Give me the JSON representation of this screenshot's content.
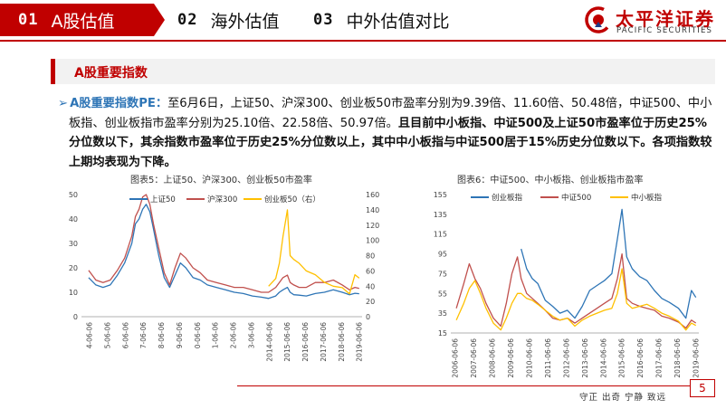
{
  "header": {
    "tabs": [
      {
        "num": "01",
        "label": "A股估值"
      },
      {
        "num": "02",
        "label": "海外估值"
      },
      {
        "num": "03",
        "label": "中外估值对比"
      }
    ],
    "logo_cn": "太平洋证券",
    "logo_en": "PACIFIC SECURITIES"
  },
  "section": {
    "title": "A股重要指数"
  },
  "paragraph": {
    "lead": "A股重要指数PE：",
    "normal": "至6月6日，上证50、沪深300、创业板50市盈率分别为9.39倍、11.60倍、50.48倍，中证500、中小板指、创业板指市盈率分别为25.10倍、22.58倍、50.97倍。",
    "bold": "且目前中小板指、中证500及上证50市盈率位于历史25%分位数以下，其余指数市盈率位于历史25%分位数以上，其中中小板指与中证500居于15%历史分位数以下。各项指数较上期均表现为下降。"
  },
  "colors": {
    "brand": "#c00000",
    "blue": "#2e75b6",
    "red": "#c0504d",
    "gold": "#ffc000"
  },
  "chart_data": [
    {
      "type": "line",
      "title": "图表5：上证50、沪深300、创业板50市盈率",
      "legend": [
        "上证50",
        "沪深300",
        "创业板50（右）"
      ],
      "ylim": [
        0,
        50
      ],
      "y_ticks": [
        "0",
        "10",
        "20",
        "30",
        "40",
        "50"
      ],
      "y2lim": [
        0,
        160
      ],
      "y2_ticks": [
        "0",
        "20",
        "40",
        "60",
        "80",
        "100",
        "120",
        "140",
        "160"
      ],
      "x_ticks": [
        "2004-06-06",
        "2005-06-06",
        "2006-06-06",
        "2007-06-06",
        "2008-06-06",
        "2009-06-06",
        "2010-06-06",
        "2011-06-06",
        "2012-06-06",
        "2013-06-06",
        "2014-06-06",
        "2015-06-06",
        "2016-06-06",
        "2017-06-06",
        "2018-06-06",
        "2019-06-06"
      ],
      "x_tick_labels": [
        "4-06-06",
        "5-06-06",
        "6-06-06",
        "7-06-06",
        "8-06-06",
        "9-06-06",
        "0-06-06",
        "1-06-06",
        "2-06-06",
        "3-06-06",
        "2014-06-06",
        "2015-06-06",
        "2016-06-06",
        "2017-06-06",
        "2018-06-06",
        "2019-06-06"
      ],
      "x": [
        2004.4,
        2004.8,
        2005.2,
        2005.6,
        2006.0,
        2006.4,
        2006.8,
        2007.0,
        2007.2,
        2007.4,
        2007.6,
        2007.8,
        2008.0,
        2008.3,
        2008.6,
        2008.9,
        2009.2,
        2009.5,
        2009.8,
        2010.2,
        2010.6,
        2011.0,
        2011.5,
        2012.0,
        2012.5,
        2013.0,
        2013.5,
        2014.0,
        2014.4,
        2014.8,
        2015.0,
        2015.2,
        2015.45,
        2015.6,
        2015.8,
        2016.1,
        2016.5,
        2017.0,
        2017.5,
        2018.0,
        2018.5,
        2018.9,
        2019.2,
        2019.44
      ],
      "series": [
        {
          "name": "上证50",
          "axis": "left",
          "values": [
            16,
            13,
            12,
            13,
            17,
            22,
            30,
            38,
            40,
            44,
            46,
            43,
            36,
            25,
            16,
            12,
            17,
            22,
            20,
            16,
            15,
            13,
            12,
            11,
            10,
            9.5,
            8.5,
            8.0,
            7.5,
            8.5,
            10,
            11,
            12,
            10,
            9,
            8.8,
            8.5,
            9.5,
            10,
            11,
            10,
            9,
            9.6,
            9.4
          ]
        },
        {
          "name": "沪深300",
          "axis": "left",
          "values": [
            19,
            15,
            14,
            15,
            19,
            24,
            33,
            41,
            44,
            49,
            50,
            46,
            38,
            28,
            18,
            13,
            20,
            26,
            24,
            20,
            18,
            15,
            14,
            13,
            12,
            12,
            11,
            10,
            10,
            12,
            14,
            16,
            17,
            14,
            13,
            12,
            12,
            14,
            14,
            15,
            13,
            11,
            12,
            11.6
          ]
        },
        {
          "name": "创业板50（右）",
          "axis": "right",
          "values": [
            null,
            null,
            null,
            null,
            null,
            null,
            null,
            null,
            null,
            null,
            null,
            null,
            null,
            null,
            null,
            null,
            null,
            null,
            null,
            null,
            null,
            null,
            null,
            null,
            null,
            null,
            null,
            null,
            40,
            50,
            70,
            105,
            140,
            80,
            75,
            70,
            60,
            55,
            45,
            40,
            38,
            30,
            55,
            50.5
          ]
        }
      ]
    },
    {
      "type": "line",
      "title": "图表6：中证500、中小板指、创业板指市盈率",
      "legend": [
        "创业板指",
        "中证500",
        "中小板指"
      ],
      "ylim": [
        15,
        155
      ],
      "y_ticks": [
        "15",
        "35",
        "55",
        "75",
        "95",
        "115",
        "135",
        "155"
      ],
      "x_ticks": [
        "2006-06-06",
        "2007-06-06",
        "2008-06-06",
        "2009-06-06",
        "2010-06-06",
        "2011-06-06",
        "2012-06-06",
        "2013-06-06",
        "2014-06-06",
        "2015-06-06",
        "2016-06-06",
        "2017-06-06",
        "2018-06-06",
        "2019-06-06"
      ],
      "x": [
        2006.5,
        2006.9,
        2007.2,
        2007.5,
        2007.8,
        2008.1,
        2008.5,
        2008.9,
        2009.2,
        2009.5,
        2009.8,
        2010.0,
        2010.3,
        2010.6,
        2010.9,
        2011.3,
        2011.7,
        2012.1,
        2012.5,
        2012.9,
        2013.3,
        2013.7,
        2014.1,
        2014.5,
        2014.9,
        2015.2,
        2015.45,
        2015.7,
        2016.0,
        2016.4,
        2016.8,
        2017.2,
        2017.6,
        2018.0,
        2018.5,
        2018.9,
        2019.2,
        2019.44
      ],
      "series": [
        {
          "name": "创业板指",
          "values": [
            null,
            null,
            null,
            null,
            null,
            null,
            null,
            null,
            null,
            null,
            null,
            100,
            80,
            70,
            65,
            48,
            42,
            35,
            38,
            30,
            42,
            58,
            63,
            68,
            75,
            110,
            140,
            92,
            80,
            72,
            68,
            58,
            50,
            46,
            40,
            30,
            58,
            50.97
          ]
        },
        {
          "name": "中证500",
          "values": [
            40,
            65,
            85,
            70,
            60,
            45,
            30,
            22,
            45,
            75,
            92,
            70,
            55,
            50,
            45,
            38,
            30,
            28,
            30,
            25,
            30,
            35,
            40,
            45,
            50,
            70,
            95,
            50,
            45,
            42,
            40,
            38,
            32,
            30,
            26,
            20,
            28,
            25.1
          ]
        },
        {
          "name": "中小板指",
          "values": [
            28,
            45,
            60,
            68,
            55,
            40,
            25,
            18,
            30,
            45,
            55,
            55,
            50,
            48,
            44,
            38,
            32,
            28,
            30,
            22,
            28,
            32,
            35,
            38,
            40,
            55,
            80,
            45,
            40,
            42,
            44,
            40,
            35,
            32,
            27,
            18,
            25,
            22.58
          ]
        }
      ]
    }
  ],
  "footer": {
    "page": "5",
    "slogan": "守正 出奇 宁静 致远"
  }
}
